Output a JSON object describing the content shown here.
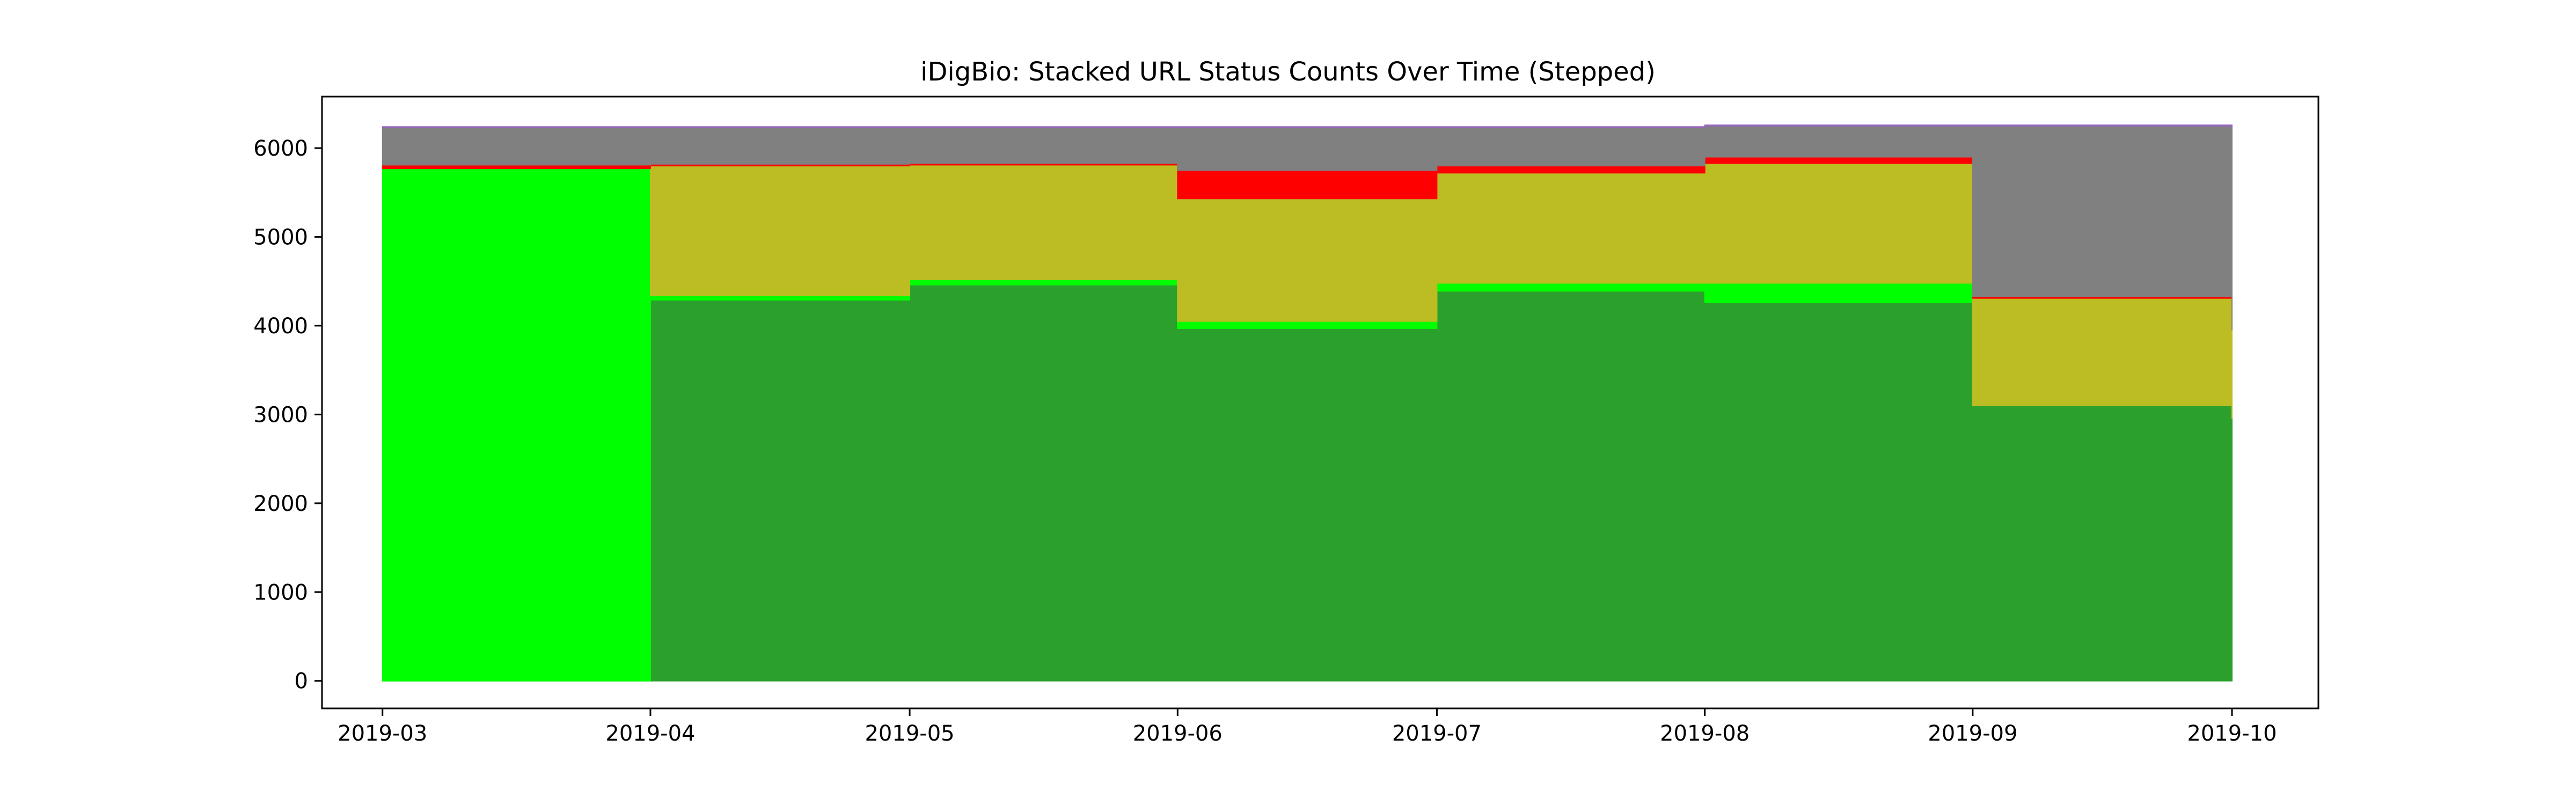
{
  "chart_data": {
    "type": "area",
    "title": "iDigBio: Stacked URL Status Counts Over Time (Stepped)",
    "xlabel": "",
    "ylabel": "",
    "step": "post",
    "stacked": true,
    "x": [
      "2019-03",
      "2019-04",
      "2019-05",
      "2019-06",
      "2019-07",
      "2019-08",
      "2019-09",
      "2019-10"
    ],
    "xlim": [
      "2019-02-22",
      "2019-10-11"
    ],
    "ylim": [
      -310,
      6580
    ],
    "yticks": [
      0,
      1000,
      2000,
      3000,
      4000,
      5000,
      6000
    ],
    "grid": false,
    "legend": "none",
    "series": [
      {
        "color": "#2ca02c",
        "values": [
          0,
          4290,
          4460,
          3970,
          4390,
          4260,
          3100,
          2950
        ]
      },
      {
        "color": "#00ff00",
        "values": [
          5770,
          50,
          60,
          80,
          90,
          220,
          0,
          0
        ]
      },
      {
        "color": "#bcbd22",
        "values": [
          0,
          1460,
          1290,
          1380,
          1240,
          1350,
          1210,
          1000
        ]
      },
      {
        "color": "#ff0000",
        "values": [
          40,
          20,
          20,
          320,
          80,
          70,
          20,
          0
        ]
      },
      {
        "color": "#808080",
        "values": [
          420,
          410,
          400,
          480,
          430,
          350,
          1920,
          2280
        ]
      },
      {
        "color": "#9467bd",
        "values": [
          10,
          10,
          10,
          10,
          10,
          10,
          10,
          10
        ]
      }
    ]
  }
}
